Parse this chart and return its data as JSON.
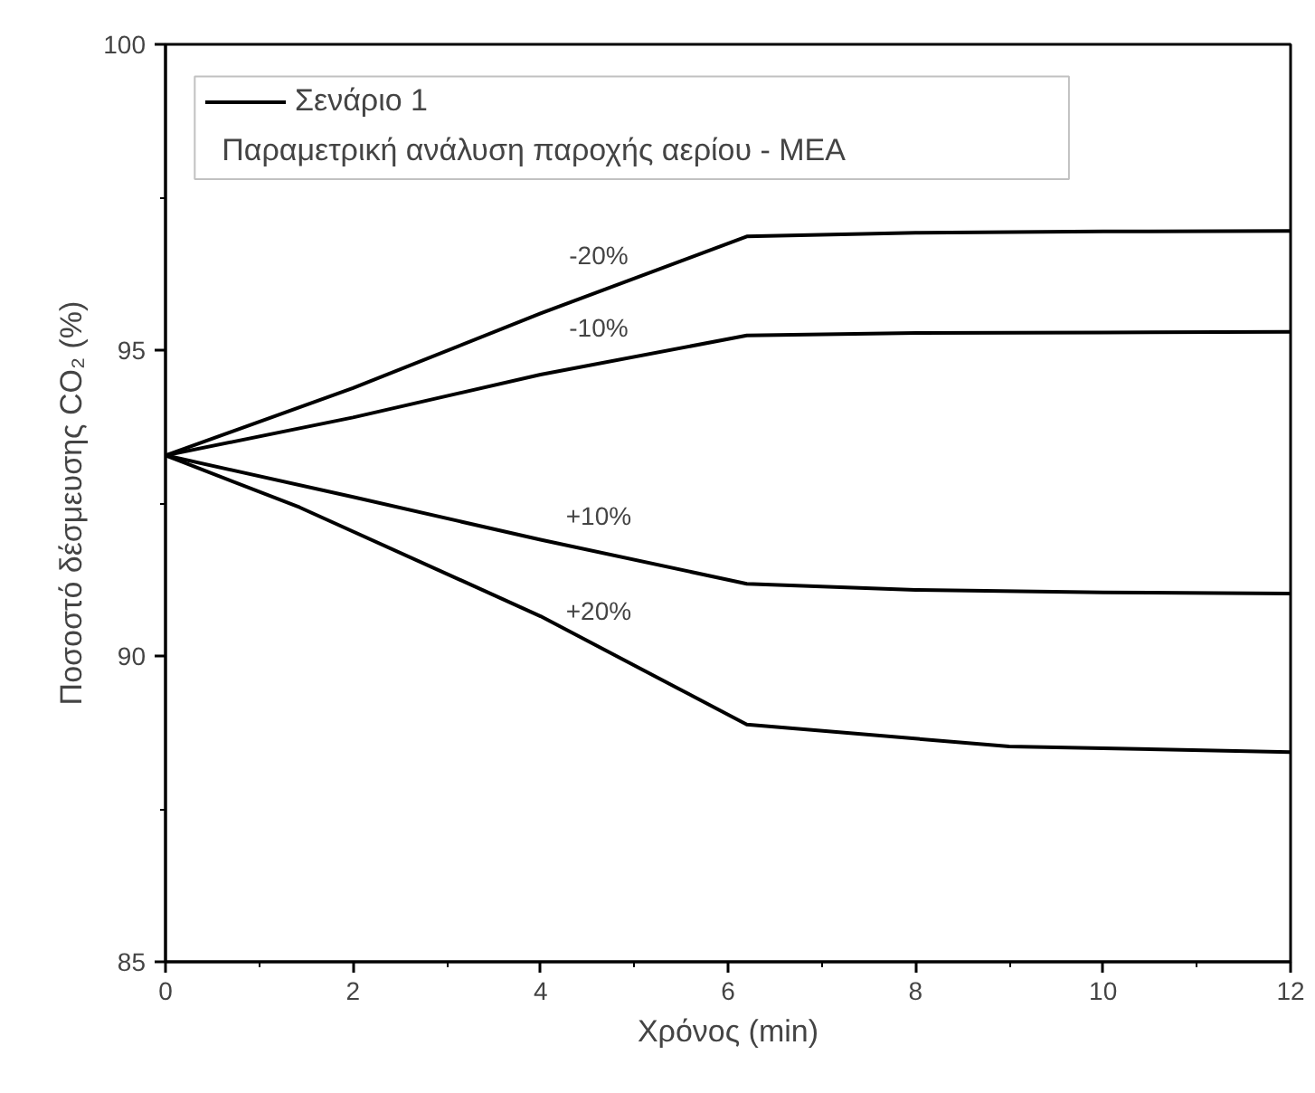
{
  "chart_data": {
    "type": "line",
    "xlabel": "Χρόνος (min)",
    "ylabel": "Ποσοστό δέσμευσης CO₂ (%)",
    "legend_title": "Παραμετρική ανάλυση παροχής αερίου - MEA",
    "xlim": [
      0,
      12
    ],
    "ylim": [
      85,
      100
    ],
    "xticks": [
      0,
      2,
      4,
      6,
      8,
      10,
      12
    ],
    "yticks": [
      85,
      90,
      95,
      100
    ],
    "grid": false,
    "legend": "top left",
    "marker": "none",
    "line_style": "solid",
    "series": [
      {
        "name": "Σενάριο 1",
        "color": "#000000",
        "x": [
          0,
          2,
          4,
          6.2,
          8,
          10,
          12
        ],
        "values": [
          93.28,
          94.38,
          95.6,
          96.86,
          96.92,
          96.94,
          96.95
        ]
      },
      {
        "color": "#000000",
        "x": [
          0,
          2,
          4,
          6.2,
          8,
          10,
          12
        ],
        "values": [
          93.28,
          93.9,
          94.6,
          95.24,
          95.28,
          95.29,
          95.3
        ]
      },
      {
        "color": "#000000",
        "x": [
          0,
          2,
          4,
          6.2,
          8,
          10,
          12
        ],
        "values": [
          93.28,
          92.6,
          91.9,
          91.18,
          91.08,
          91.04,
          91.02
        ]
      },
      {
        "color": "#000000",
        "x": [
          0,
          1.43,
          4,
          6.2,
          9,
          12
        ],
        "values": [
          93.28,
          92.43,
          90.65,
          88.88,
          88.52,
          88.43
        ]
      }
    ],
    "annotations": [
      "-20%",
      "-10%",
      "+10%",
      "+20%"
    ]
  }
}
